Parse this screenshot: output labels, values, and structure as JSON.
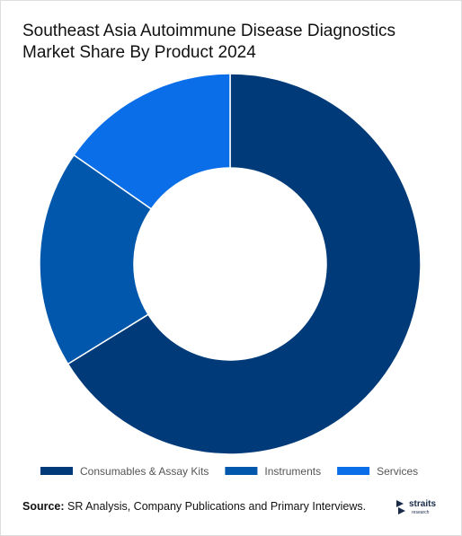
{
  "chart_data": {
    "type": "donut",
    "title": "Southeast Asia Autoimmune Disease Diagnostics Market Share By Product 2024",
    "categories": [
      "Consumables & Assay Kits",
      "Instruments",
      "Services"
    ],
    "values": [
      66.2,
      18.5,
      15.3
    ],
    "colors": [
      "#003a78",
      "#0057ab",
      "#0a6ee8"
    ]
  },
  "source": {
    "label": "Source:",
    "text": "SR Analysis, Company Publications and Primary Interviews."
  },
  "logo": {
    "name": "straits",
    "sub": "research"
  }
}
